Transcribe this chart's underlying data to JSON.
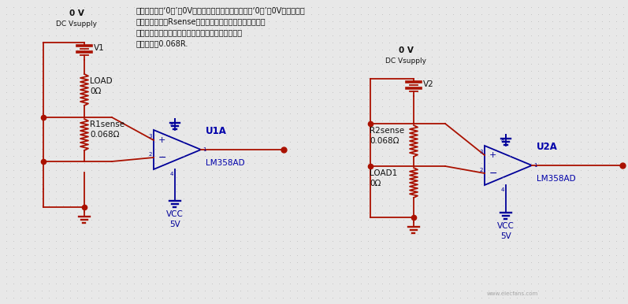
{
  "bg_color": "#e8e8e8",
  "dot_color": "#b0b0b0",
  "wire_color": "#aa1100",
  "comp_color": "#000099",
  "text_color_dark": "#111111",
  "text_color_blue": "#0000aa",
  "annotation_lines": [
    "忽略负载电阻‘0欧’和0V字样。由于软件关系，无法把‘0欧’和0V字样去掉。",
    "作电流检测电阻Rsense应该选择足够小（功率要大点）。",
    "以减少损耗（功率大以保证工作时电阻发热不损坏）",
    "这里选择为0.068R."
  ],
  "figsize": [
    7.97,
    3.86
  ],
  "dpi": 100
}
